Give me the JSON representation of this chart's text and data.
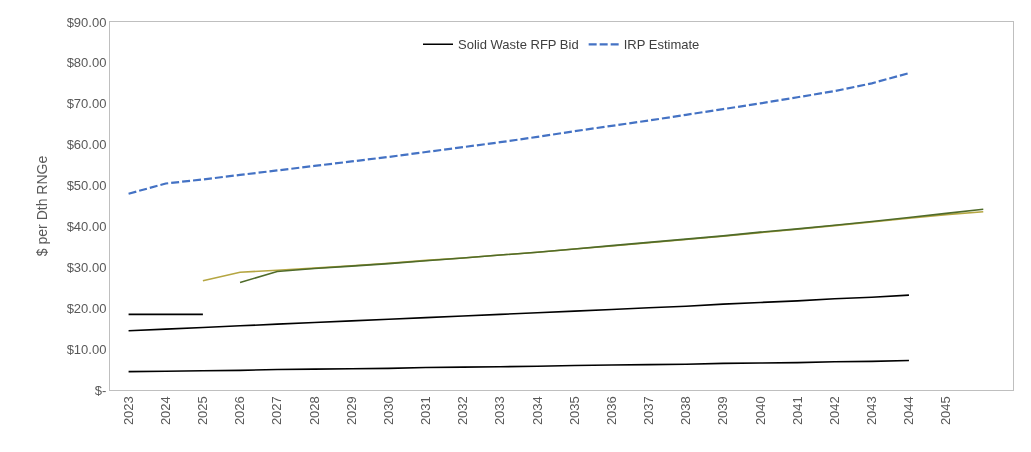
{
  "chart_data": {
    "type": "line",
    "ylabel": "$ per Dth RNGe",
    "categories": [
      "2023",
      "2024",
      "2025",
      "2026",
      "2027",
      "2028",
      "2029",
      "2030",
      "2031",
      "2032",
      "2033",
      "2034",
      "2035",
      "2036",
      "2037",
      "2038",
      "2039",
      "2040",
      "2041",
      "2042",
      "2043",
      "2044",
      "2045",
      null
    ],
    "ylim": [
      0,
      90
    ],
    "yticks": [
      {
        "value": 0,
        "label": "$-"
      },
      {
        "value": 10,
        "label": "$10.00"
      },
      {
        "value": 20,
        "label": "$20.00"
      },
      {
        "value": 30,
        "label": "$30.00"
      },
      {
        "value": 40,
        "label": "$40.00"
      },
      {
        "value": 50,
        "label": "$50.00"
      },
      {
        "value": 60,
        "label": "$60.00"
      },
      {
        "value": 70,
        "label": "$70.00"
      },
      {
        "value": 80,
        "label": "$80.00"
      },
      {
        "value": 90,
        "label": "$90.00"
      }
    ],
    "legend": "top",
    "marker": "none",
    "series": [
      {
        "name": "Solid Waste RFP Bid",
        "color": "#000000",
        "line_style": "solid",
        "values": [
          14.5,
          14.9,
          15.3,
          15.7,
          16.1,
          16.5,
          16.9,
          17.3,
          17.7,
          18.1,
          18.5,
          18.9,
          19.3,
          19.7,
          20.1,
          20.5,
          21.0,
          21.4,
          21.8,
          22.3,
          22.7,
          23.2,
          null,
          null
        ]
      },
      {
        "name": "IRP Estimate",
        "color": "#4472c4",
        "line_style": "dashed",
        "values": [
          48.0,
          50.5,
          51.5,
          52.6,
          53.7,
          54.8,
          55.9,
          57.0,
          58.2,
          59.4,
          60.6,
          61.9,
          63.3,
          64.6,
          65.9,
          67.3,
          68.7,
          70.1,
          71.6,
          73.1,
          75.0,
          77.5,
          null,
          null
        ]
      },
      {
        "color": "#000000",
        "line_style": "solid",
        "values": [
          18.5,
          18.5,
          18.5,
          null,
          null,
          null,
          null,
          null,
          null,
          null,
          null,
          null,
          null,
          null,
          null,
          null,
          null,
          null,
          null,
          null,
          null,
          null,
          null,
          null
        ]
      },
      {
        "color": "#000000",
        "line_style": "solid",
        "values": [
          4.5,
          4.6,
          4.7,
          4.8,
          5.0,
          5.1,
          5.2,
          5.3,
          5.5,
          5.6,
          5.7,
          5.8,
          6.0,
          6.1,
          6.2,
          6.3,
          6.5,
          6.6,
          6.7,
          6.9,
          7.0,
          7.2,
          null,
          null
        ]
      },
      {
        "color": "#b5a642",
        "line_style": "solid",
        "values": [
          null,
          null,
          26.7,
          28.8,
          29.3,
          29.8,
          30.4,
          31.0,
          31.7,
          32.3,
          33.0,
          33.7,
          34.5,
          35.2,
          36.0,
          36.8,
          37.6,
          38.5,
          39.3,
          40.2,
          41.1,
          42.0,
          42.9,
          43.6
        ]
      },
      {
        "color": "#4f6b2a",
        "line_style": "solid",
        "values": [
          null,
          null,
          null,
          26.3,
          29.0,
          29.7,
          30.3,
          30.9,
          31.6,
          32.3,
          33.0,
          33.7,
          34.5,
          35.3,
          36.1,
          36.9,
          37.7,
          38.6,
          39.4,
          40.3,
          41.2,
          42.2,
          43.2,
          44.2
        ]
      }
    ]
  }
}
